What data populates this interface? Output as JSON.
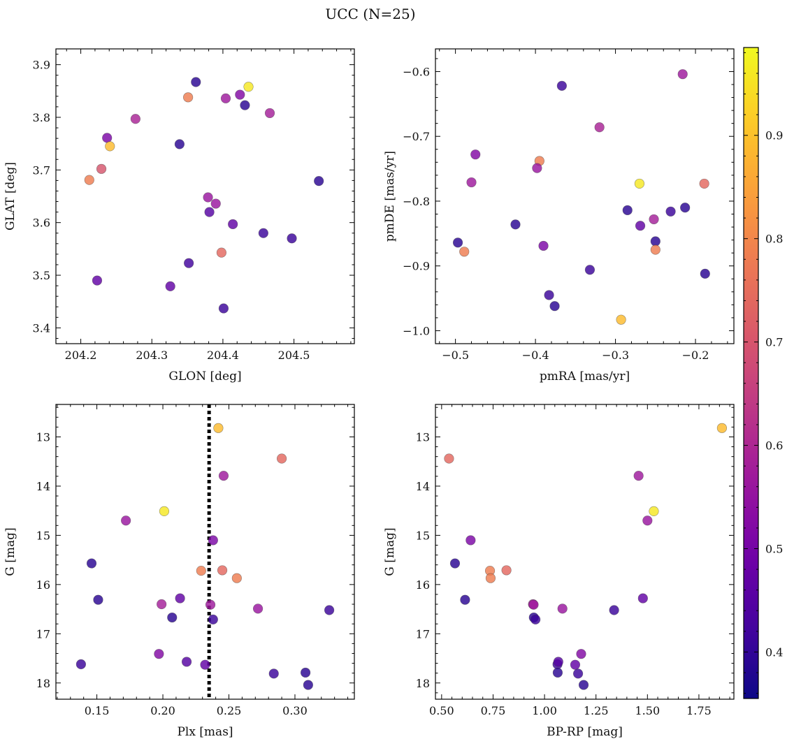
{
  "figure": {
    "title": "UCC (N=25)"
  },
  "colorbar": {
    "range": [
      0.355,
      0.985
    ],
    "ticks": [
      0.4,
      0.5,
      0.6,
      0.7,
      0.8,
      0.9
    ],
    "tick_labels": [
      "0.4",
      "0.5",
      "0.6",
      "0.7",
      "0.8",
      "0.9"
    ],
    "colormap": "plasma",
    "stops": [
      "#0d0887",
      "#46039f",
      "#7201a8",
      "#9c179e",
      "#bd3786",
      "#d8576b",
      "#ed7953",
      "#fb9f3a",
      "#fdca26",
      "#f0f921"
    ]
  },
  "chart_data": [
    {
      "type": "scatter",
      "name": "glon-glat",
      "xlabel": "GLON [deg]",
      "ylabel": "GLAT [deg]",
      "xlim": [
        204.165,
        204.585
      ],
      "ylim": [
        3.37,
        3.93
      ],
      "y_inverted": false,
      "xticks": [
        204.2,
        204.3,
        204.4,
        204.5
      ],
      "xtick_labels": [
        "204.2",
        "204.3",
        "204.4",
        "204.5"
      ],
      "yticks": [
        3.4,
        3.5,
        3.6,
        3.7,
        3.8,
        3.9
      ],
      "ytick_labels": [
        "3.4",
        "3.5",
        "3.6",
        "3.7",
        "3.8",
        "3.9"
      ],
      "x_minor": 0.02,
      "y_minor": 0.02,
      "points": [
        {
          "x": 204.362,
          "y": 3.867,
          "c": 0.39
        },
        {
          "x": 204.351,
          "y": 3.838,
          "c": 0.78
        },
        {
          "x": 204.436,
          "y": 3.858,
          "c": 0.96
        },
        {
          "x": 204.404,
          "y": 3.836,
          "c": 0.57
        },
        {
          "x": 204.424,
          "y": 3.843,
          "c": 0.52
        },
        {
          "x": 204.431,
          "y": 3.823,
          "c": 0.39
        },
        {
          "x": 204.466,
          "y": 3.808,
          "c": 0.58
        },
        {
          "x": 204.277,
          "y": 3.797,
          "c": 0.59
        },
        {
          "x": 204.237,
          "y": 3.761,
          "c": 0.51
        },
        {
          "x": 204.241,
          "y": 3.745,
          "c": 0.89
        },
        {
          "x": 204.339,
          "y": 3.749,
          "c": 0.39
        },
        {
          "x": 204.229,
          "y": 3.702,
          "c": 0.7
        },
        {
          "x": 204.212,
          "y": 3.681,
          "c": 0.78
        },
        {
          "x": 204.535,
          "y": 3.679,
          "c": 0.39
        },
        {
          "x": 204.379,
          "y": 3.648,
          "c": 0.56
        },
        {
          "x": 204.39,
          "y": 3.636,
          "c": 0.56
        },
        {
          "x": 204.381,
          "y": 3.62,
          "c": 0.45
        },
        {
          "x": 204.414,
          "y": 3.597,
          "c": 0.47
        },
        {
          "x": 204.457,
          "y": 3.58,
          "c": 0.41
        },
        {
          "x": 204.497,
          "y": 3.57,
          "c": 0.41
        },
        {
          "x": 204.398,
          "y": 3.543,
          "c": 0.74
        },
        {
          "x": 204.352,
          "y": 3.523,
          "c": 0.42
        },
        {
          "x": 204.223,
          "y": 3.49,
          "c": 0.47
        },
        {
          "x": 204.326,
          "y": 3.479,
          "c": 0.47
        },
        {
          "x": 204.401,
          "y": 3.437,
          "c": 0.41
        }
      ]
    },
    {
      "type": "scatter",
      "name": "pmra-pmde",
      "xlabel": "pmRA [mas/yr]",
      "ylabel": "pmDE [mas/yr]",
      "xlim": [
        -0.525,
        -0.152
      ],
      "ylim": [
        -1.02,
        -0.565
      ],
      "y_inverted": false,
      "xticks": [
        -0.5,
        -0.4,
        -0.3,
        -0.2
      ],
      "xtick_labels": [
        "−0.5",
        "−0.4",
        "−0.3",
        "−0.2"
      ],
      "yticks": [
        -1.0,
        -0.9,
        -0.8,
        -0.7,
        -0.6
      ],
      "ytick_labels": [
        "−1.0",
        "−0.9",
        "−0.8",
        "−0.7",
        "−0.6"
      ],
      "x_minor": 0.02,
      "y_minor": 0.02,
      "points": [
        {
          "x": -0.216,
          "y": -0.604,
          "c": 0.57
        },
        {
          "x": -0.367,
          "y": -0.622,
          "c": 0.41
        },
        {
          "x": -0.32,
          "y": -0.686,
          "c": 0.59
        },
        {
          "x": -0.475,
          "y": -0.728,
          "c": 0.52
        },
        {
          "x": -0.395,
          "y": -0.738,
          "c": 0.78
        },
        {
          "x": -0.398,
          "y": -0.749,
          "c": 0.56
        },
        {
          "x": -0.48,
          "y": -0.771,
          "c": 0.57
        },
        {
          "x": -0.27,
          "y": -0.773,
          "c": 0.96
        },
        {
          "x": -0.189,
          "y": -0.773,
          "c": 0.74
        },
        {
          "x": -0.285,
          "y": -0.814,
          "c": 0.39
        },
        {
          "x": -0.213,
          "y": -0.81,
          "c": 0.39
        },
        {
          "x": -0.231,
          "y": -0.816,
          "c": 0.41
        },
        {
          "x": -0.425,
          "y": -0.836,
          "c": 0.39
        },
        {
          "x": -0.252,
          "y": -0.828,
          "c": 0.58
        },
        {
          "x": -0.269,
          "y": -0.838,
          "c": 0.47
        },
        {
          "x": -0.497,
          "y": -0.864,
          "c": 0.39
        },
        {
          "x": -0.25,
          "y": -0.862,
          "c": 0.39
        },
        {
          "x": -0.489,
          "y": -0.878,
          "c": 0.78
        },
        {
          "x": -0.39,
          "y": -0.869,
          "c": 0.51
        },
        {
          "x": -0.25,
          "y": -0.875,
          "c": 0.78
        },
        {
          "x": -0.332,
          "y": -0.906,
          "c": 0.41
        },
        {
          "x": -0.188,
          "y": -0.912,
          "c": 0.39
        },
        {
          "x": -0.383,
          "y": -0.945,
          "c": 0.41
        },
        {
          "x": -0.376,
          "y": -0.962,
          "c": 0.39
        },
        {
          "x": -0.293,
          "y": -0.983,
          "c": 0.89
        }
      ]
    },
    {
      "type": "scatter",
      "name": "plx-g",
      "xlabel": "Plx [mas]",
      "ylabel": "G [mag]",
      "xlim": [
        0.119,
        0.345
      ],
      "ylim": [
        12.34,
        18.33
      ],
      "y_inverted": true,
      "xticks": [
        0.15,
        0.2,
        0.25,
        0.3
      ],
      "xtick_labels": [
        "0.15",
        "0.20",
        "0.25",
        "0.30"
      ],
      "yticks": [
        13,
        14,
        15,
        16,
        17,
        18
      ],
      "ytick_labels": [
        "13",
        "14",
        "15",
        "16",
        "17",
        "18"
      ],
      "x_minor": 0.01,
      "y_minor": 0.2,
      "vline": 0.235,
      "points": [
        {
          "x": 0.242,
          "y": 12.82,
          "c": 0.89
        },
        {
          "x": 0.29,
          "y": 13.44,
          "c": 0.74
        },
        {
          "x": 0.246,
          "y": 13.79,
          "c": 0.57
        },
        {
          "x": 0.201,
          "y": 14.51,
          "c": 0.96
        },
        {
          "x": 0.172,
          "y": 14.7,
          "c": 0.56
        },
        {
          "x": 0.238,
          "y": 15.1,
          "c": 0.51
        },
        {
          "x": 0.146,
          "y": 15.57,
          "c": 0.39
        },
        {
          "x": 0.229,
          "y": 15.72,
          "c": 0.78
        },
        {
          "x": 0.245,
          "y": 15.71,
          "c": 0.74
        },
        {
          "x": 0.256,
          "y": 15.87,
          "c": 0.78
        },
        {
          "x": 0.151,
          "y": 16.31,
          "c": 0.39
        },
        {
          "x": 0.213,
          "y": 16.28,
          "c": 0.47
        },
        {
          "x": 0.199,
          "y": 16.4,
          "c": 0.58
        },
        {
          "x": 0.236,
          "y": 16.41,
          "c": 0.57
        },
        {
          "x": 0.272,
          "y": 16.49,
          "c": 0.56
        },
        {
          "x": 0.326,
          "y": 16.52,
          "c": 0.41
        },
        {
          "x": 0.207,
          "y": 16.67,
          "c": 0.39
        },
        {
          "x": 0.238,
          "y": 16.71,
          "c": 0.41
        },
        {
          "x": 0.197,
          "y": 17.41,
          "c": 0.52
        },
        {
          "x": 0.138,
          "y": 17.62,
          "c": 0.41
        },
        {
          "x": 0.218,
          "y": 17.57,
          "c": 0.45
        },
        {
          "x": 0.232,
          "y": 17.63,
          "c": 0.47
        },
        {
          "x": 0.284,
          "y": 17.81,
          "c": 0.41
        },
        {
          "x": 0.308,
          "y": 17.79,
          "c": 0.39
        },
        {
          "x": 0.31,
          "y": 18.04,
          "c": 0.39
        }
      ]
    },
    {
      "type": "scatter",
      "name": "bprp-g",
      "xlabel": "BP-RP [mag]",
      "ylabel": "G [mag]",
      "xlim": [
        0.47,
        1.92
      ],
      "ylim": [
        12.34,
        18.33
      ],
      "y_inverted": true,
      "xticks": [
        0.5,
        0.75,
        1.0,
        1.25,
        1.5,
        1.75
      ],
      "xtick_labels": [
        "0.50",
        "0.75",
        "1.00",
        "1.25",
        "1.50",
        "1.75"
      ],
      "yticks": [
        13,
        14,
        15,
        16,
        17,
        18
      ],
      "ytick_labels": [
        "13",
        "14",
        "15",
        "16",
        "17",
        "18"
      ],
      "x_minor": 0.05,
      "y_minor": 0.2,
      "points": [
        {
          "x": 1.862,
          "y": 12.82,
          "c": 0.89
        },
        {
          "x": 0.536,
          "y": 13.44,
          "c": 0.74
        },
        {
          "x": 1.457,
          "y": 13.79,
          "c": 0.57
        },
        {
          "x": 1.531,
          "y": 14.51,
          "c": 0.96
        },
        {
          "x": 1.5,
          "y": 14.7,
          "c": 0.56
        },
        {
          "x": 0.641,
          "y": 15.1,
          "c": 0.51
        },
        {
          "x": 0.565,
          "y": 15.57,
          "c": 0.39
        },
        {
          "x": 0.735,
          "y": 15.72,
          "c": 0.78
        },
        {
          "x": 0.815,
          "y": 15.71,
          "c": 0.74
        },
        {
          "x": 0.738,
          "y": 15.87,
          "c": 0.78
        },
        {
          "x": 0.614,
          "y": 16.31,
          "c": 0.39
        },
        {
          "x": 1.478,
          "y": 16.28,
          "c": 0.47
        },
        {
          "x": 0.944,
          "y": 16.4,
          "c": 0.58
        },
        {
          "x": 0.947,
          "y": 16.41,
          "c": 0.57
        },
        {
          "x": 1.087,
          "y": 16.49,
          "c": 0.56
        },
        {
          "x": 1.338,
          "y": 16.52,
          "c": 0.41
        },
        {
          "x": 0.948,
          "y": 16.67,
          "c": 0.39
        },
        {
          "x": 0.956,
          "y": 16.71,
          "c": 0.41
        },
        {
          "x": 1.178,
          "y": 17.41,
          "c": 0.52
        },
        {
          "x": 1.063,
          "y": 17.62,
          "c": 0.41
        },
        {
          "x": 1.067,
          "y": 17.57,
          "c": 0.45
        },
        {
          "x": 1.149,
          "y": 17.63,
          "c": 0.47
        },
        {
          "x": 1.064,
          "y": 17.79,
          "c": 0.39
        },
        {
          "x": 1.163,
          "y": 17.81,
          "c": 0.41
        },
        {
          "x": 1.19,
          "y": 18.04,
          "c": 0.39
        }
      ]
    }
  ]
}
